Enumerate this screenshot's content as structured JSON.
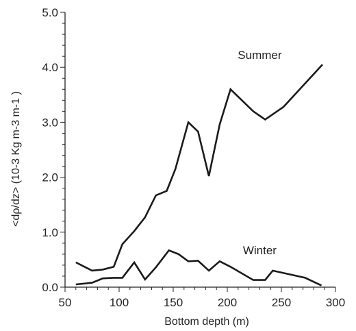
{
  "chart_data": {
    "type": "line",
    "title": "",
    "xlabel": "Bottom depth (m)",
    "ylabel": "<dρ/dz> (10-3 Kg m-3 m-1 )",
    "xlim": [
      50,
      300
    ],
    "ylim": [
      0.0,
      5.0
    ],
    "x_ticks": [
      50,
      100,
      150,
      200,
      250,
      300
    ],
    "y_ticks": [
      "0.0",
      "1.0",
      "2.0",
      "3.0",
      "4.0",
      "5.0"
    ],
    "x_minor_step": 10,
    "y_minor_step": 0.2,
    "grid": false,
    "legend": "none",
    "colors": {
      "line": "#1a1a1a",
      "axis": "#222222"
    },
    "series": [
      {
        "name": "Summer",
        "x": [
          60,
          75,
          85,
          95,
          103,
          114,
          124,
          134,
          144,
          152,
          164,
          173,
          183,
          193,
          203,
          224,
          235,
          252,
          288
        ],
        "y": [
          0.45,
          0.3,
          0.32,
          0.37,
          0.78,
          1.02,
          1.27,
          1.67,
          1.75,
          2.15,
          3.0,
          2.83,
          2.02,
          2.96,
          3.6,
          3.2,
          3.05,
          3.28,
          4.05
        ]
      },
      {
        "name": "Winter",
        "x": [
          60,
          75,
          85,
          95,
          103,
          114,
          124,
          134,
          146,
          155,
          164,
          173,
          183,
          193,
          203,
          224,
          235,
          242,
          272,
          287
        ],
        "y": [
          0.05,
          0.08,
          0.16,
          0.17,
          0.17,
          0.45,
          0.14,
          0.36,
          0.67,
          0.6,
          0.47,
          0.48,
          0.3,
          0.47,
          0.37,
          0.13,
          0.13,
          0.3,
          0.17,
          0.03
        ]
      }
    ],
    "series_labels": [
      {
        "text": "Summer",
        "x": 230,
        "y": 4.15
      },
      {
        "text": "Winter",
        "x": 230,
        "y": 0.6
      }
    ]
  }
}
